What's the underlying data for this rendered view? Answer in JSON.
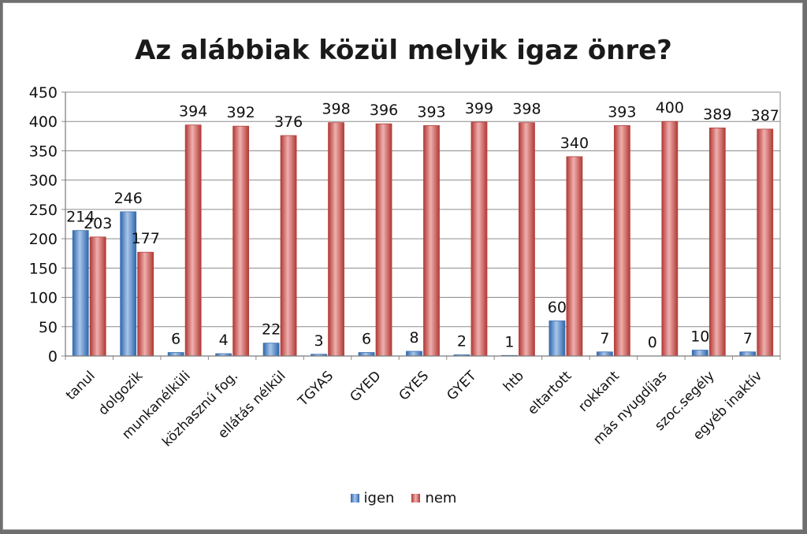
{
  "chart_data": {
    "type": "bar",
    "title": "Az alábbiak közül melyik igaz önre?",
    "categories": [
      "tanul",
      "dolgozik",
      "munkanélküli",
      "közhasznú fog.",
      "ellátás nélkül",
      "TGYAS",
      "GYED",
      "GYES",
      "GYET",
      "htb",
      "eltartott",
      "rokkant",
      "más nyugdíjas",
      "szoc.segély",
      "egyéb inaktív"
    ],
    "series": [
      {
        "name": "igen",
        "color": "#4f86c6",
        "values": [
          214,
          246,
          6,
          4,
          22,
          3,
          6,
          8,
          2,
          1,
          60,
          7,
          0,
          10,
          7
        ]
      },
      {
        "name": "nem",
        "color": "#c84b47",
        "values": [
          203,
          177,
          394,
          392,
          376,
          398,
          396,
          393,
          399,
          398,
          340,
          393,
          400,
          389,
          387
        ]
      }
    ],
    "ylim": [
      0,
      450
    ],
    "yticks": [
      0,
      50,
      100,
      150,
      200,
      250,
      300,
      350,
      400,
      450
    ],
    "xlabel": "",
    "ylabel": "",
    "grid": true,
    "legend_position": "bottom"
  }
}
